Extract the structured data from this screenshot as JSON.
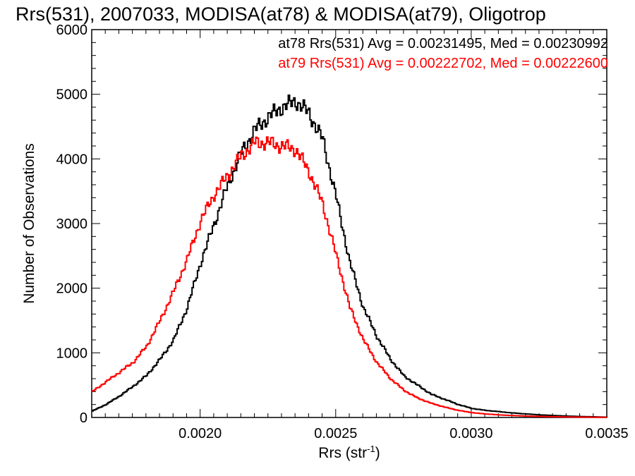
{
  "chart_data": {
    "type": "line",
    "title": "Rrs(531), 2007033, MODISA(at78) & MODISA(at79), Oligotrop",
    "xlabel": "Rrs (str",
    "xlabel_sup": "-1",
    "xlabel_end": ")",
    "ylabel": "Number of Observations",
    "xlim": [
      0.0016,
      0.0035
    ],
    "ylim": [
      0,
      6000
    ],
    "x_ticks": [
      0.002,
      0.0025,
      0.003,
      0.0035
    ],
    "x_tick_labels": [
      "0.0020",
      "0.0025",
      "0.0030",
      "0.0035"
    ],
    "y_ticks": [
      0,
      1000,
      2000,
      3000,
      4000,
      5000,
      6000
    ],
    "y_tick_labels": [
      "0",
      "1000",
      "2000",
      "3000",
      "4000",
      "5000",
      "6000"
    ],
    "grid": false,
    "legend_position": "top-right",
    "series": [
      {
        "name": "at78",
        "color": "#000000",
        "legend_text": "at78 Rrs(531) Avg = 0.00231495, Med = 0.00230992",
        "x": [
          0.0016,
          0.00165,
          0.0017,
          0.00175,
          0.0018,
          0.00185,
          0.0019,
          0.00195,
          0.002,
          0.00205,
          0.0021,
          0.00215,
          0.0022,
          0.00225,
          0.0023,
          0.00233,
          0.00235,
          0.0024,
          0.00245,
          0.0025,
          0.00255,
          0.0026,
          0.00265,
          0.0027,
          0.00275,
          0.0028,
          0.00285,
          0.0029,
          0.00295,
          0.003,
          0.00305,
          0.0031,
          0.00315,
          0.0032,
          0.00325,
          0.0033,
          0.00335,
          0.0034,
          0.00345,
          0.0035
        ],
        "y": [
          100,
          200,
          330,
          480,
          650,
          900,
          1200,
          1700,
          2400,
          3000,
          3600,
          4100,
          4450,
          4650,
          4800,
          4850,
          4900,
          4700,
          4300,
          3400,
          2400,
          1700,
          1250,
          900,
          640,
          500,
          360,
          280,
          200,
          140,
          110,
          90,
          70,
          55,
          40,
          30,
          22,
          15,
          10,
          5
        ]
      },
      {
        "name": "at79",
        "color": "#ff0000",
        "legend_text": "at79 Rrs(531) Avg = 0.00222702, Med = 0.00222600",
        "x": [
          0.0016,
          0.00165,
          0.0017,
          0.00175,
          0.0018,
          0.00185,
          0.0019,
          0.00195,
          0.002,
          0.00205,
          0.0021,
          0.00215,
          0.0022,
          0.00225,
          0.0023,
          0.00235,
          0.0024,
          0.00245,
          0.0025,
          0.00255,
          0.0026,
          0.00265,
          0.0027,
          0.00275,
          0.0028,
          0.00285,
          0.0029,
          0.00295,
          0.003,
          0.00305,
          0.0031,
          0.00315,
          0.0032,
          0.00325,
          0.0033,
          0.00335,
          0.0034,
          0.00345,
          0.0035
        ],
        "y": [
          400,
          550,
          700,
          850,
          1100,
          1500,
          1950,
          2450,
          3050,
          3450,
          3750,
          4050,
          4250,
          4250,
          4200,
          4150,
          3800,
          3300,
          2500,
          1700,
          1200,
          850,
          600,
          420,
          300,
          220,
          160,
          110,
          75,
          55,
          40,
          30,
          22,
          16,
          12,
          8,
          6,
          4,
          3
        ]
      }
    ]
  }
}
